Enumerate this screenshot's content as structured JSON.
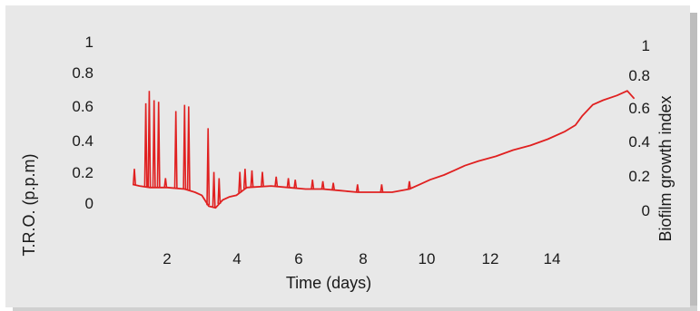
{
  "chart_data": {
    "type": "line",
    "xlabel": "Time (days)",
    "ylabel_left": "T.R.O. (p.p.m)",
    "ylabel_right": "Biofilm growth index",
    "x_ticks": [
      "2",
      "4",
      "6",
      "8",
      "10",
      "12",
      "14"
    ],
    "y_ticks_left": [
      "0",
      "0.2",
      "0.4",
      "0.6",
      "0.8",
      "1"
    ],
    "y_ticks_right": [
      "0",
      "0.2",
      "0.4",
      "0.6",
      "0.8",
      "1"
    ],
    "xlim": [
      0,
      16
    ],
    "ylim": [
      -0.15,
      1.1
    ],
    "grid": false,
    "line_color": "#e02020",
    "series": [
      {
        "x": [
          1.0,
          1.2,
          1.5,
          2.0,
          2.5,
          2.8,
          3.0,
          3.2,
          3.4,
          3.6,
          3.8,
          4.0,
          4.3,
          5.0,
          5.5,
          6.0,
          6.5,
          7.0,
          7.5,
          8.0,
          8.5,
          9.0,
          9.3,
          9.6,
          10.0,
          10.3,
          10.6,
          11.0,
          11.5,
          12.0,
          12.5,
          13.0,
          13.5,
          13.8,
          14.0,
          14.3,
          14.6,
          15.0,
          15.3,
          15.5
        ],
        "y": [
          0.12,
          0.11,
          0.1,
          0.1,
          0.09,
          0.07,
          0.05,
          -0.02,
          -0.03,
          0.02,
          0.04,
          0.05,
          0.1,
          0.11,
          0.1,
          0.09,
          0.09,
          0.08,
          0.07,
          0.07,
          0.07,
          0.09,
          0.12,
          0.15,
          0.18,
          0.21,
          0.24,
          0.27,
          0.3,
          0.34,
          0.37,
          0.41,
          0.46,
          0.5,
          0.56,
          0.63,
          0.66,
          0.69,
          0.72,
          0.67
        ]
      }
    ],
    "spikes": [
      {
        "x": 1.05,
        "y": 0.22
      },
      {
        "x": 1.38,
        "y": 0.64
      },
      {
        "x": 1.48,
        "y": 0.72
      },
      {
        "x": 1.62,
        "y": 0.66
      },
      {
        "x": 1.75,
        "y": 0.65
      },
      {
        "x": 1.95,
        "y": 0.16
      },
      {
        "x": 2.25,
        "y": 0.59
      },
      {
        "x": 2.5,
        "y": 0.63
      },
      {
        "x": 2.62,
        "y": 0.62
      },
      {
        "x": 3.18,
        "y": 0.48
      },
      {
        "x": 3.35,
        "y": 0.2
      },
      {
        "x": 3.5,
        "y": 0.16
      },
      {
        "x": 4.1,
        "y": 0.2
      },
      {
        "x": 4.25,
        "y": 0.22
      },
      {
        "x": 4.45,
        "y": 0.21
      },
      {
        "x": 4.75,
        "y": 0.2
      },
      {
        "x": 5.15,
        "y": 0.17
      },
      {
        "x": 5.5,
        "y": 0.16
      },
      {
        "x": 5.7,
        "y": 0.15
      },
      {
        "x": 6.2,
        "y": 0.15
      },
      {
        "x": 6.5,
        "y": 0.14
      },
      {
        "x": 6.8,
        "y": 0.13
      },
      {
        "x": 7.5,
        "y": 0.12
      },
      {
        "x": 8.2,
        "y": 0.12
      },
      {
        "x": 9.0,
        "y": 0.14
      }
    ]
  }
}
